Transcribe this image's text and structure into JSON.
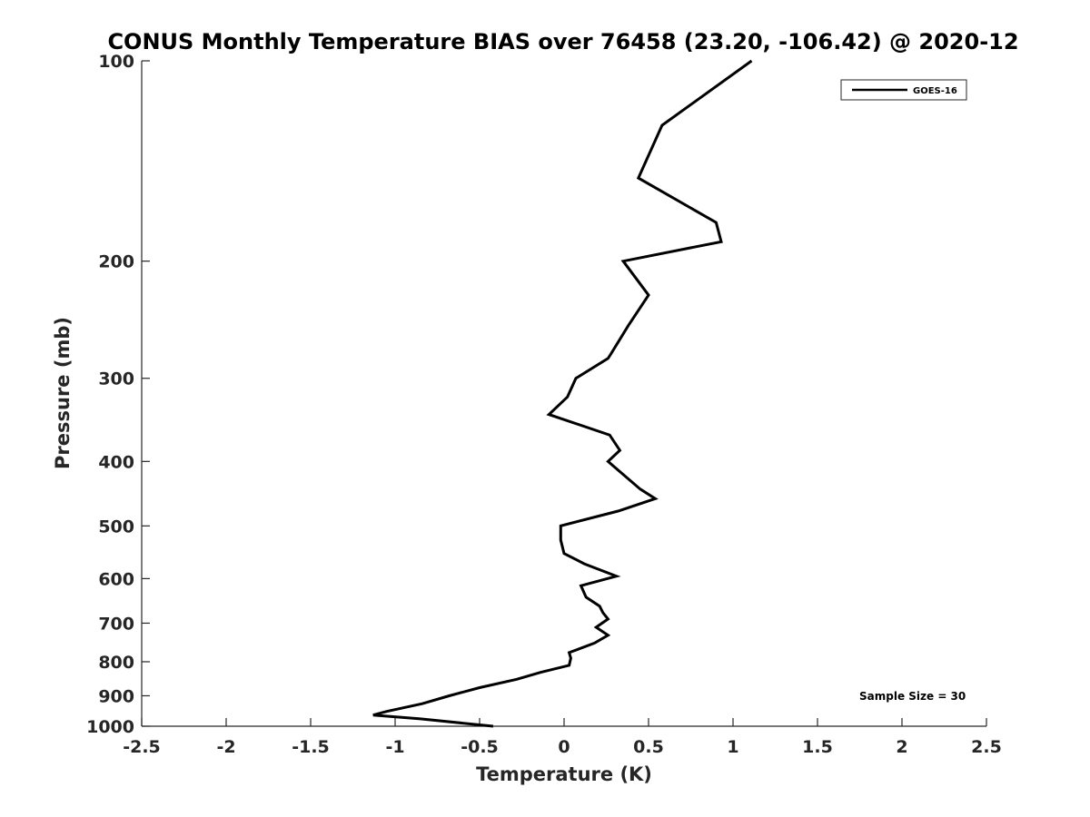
{
  "chart_data": {
    "type": "line",
    "title": "CONUS Monthly Temperature BIAS over 76458 (23.20, -106.42) @ 2020-12",
    "xlabel": "Temperature (K)",
    "ylabel": "Pressure (mb)",
    "xlim": [
      -2.5,
      2.5
    ],
    "ylim": [
      100,
      1000
    ],
    "y_scale": "log",
    "y_reversed": true,
    "grid": false,
    "legend_position": "top-right",
    "x_ticks": [
      "-2.5",
      "-2",
      "-1.5",
      "-1",
      "-0.5",
      "0",
      "0.5",
      "1",
      "1.5",
      "2",
      "2.5"
    ],
    "y_ticks": [
      "100",
      "200",
      "300",
      "400",
      "500",
      "600",
      "700",
      "800",
      "900",
      "1000"
    ],
    "series": [
      {
        "name": "GOES-16",
        "color": "#000000",
        "points": [
          {
            "t": 1.11,
            "p": 100
          },
          {
            "t": 0.58,
            "p": 125
          },
          {
            "t": 0.44,
            "p": 150
          },
          {
            "t": 0.9,
            "p": 175
          },
          {
            "t": 0.93,
            "p": 187
          },
          {
            "t": 0.35,
            "p": 200
          },
          {
            "t": 0.5,
            "p": 225
          },
          {
            "t": 0.38,
            "p": 250
          },
          {
            "t": 0.28,
            "p": 275
          },
          {
            "t": 0.26,
            "p": 280
          },
          {
            "t": 0.07,
            "p": 300
          },
          {
            "t": 0.02,
            "p": 320
          },
          {
            "t": -0.09,
            "p": 340
          },
          {
            "t": 0.27,
            "p": 365
          },
          {
            "t": 0.33,
            "p": 385
          },
          {
            "t": 0.26,
            "p": 400
          },
          {
            "t": 0.45,
            "p": 440
          },
          {
            "t": 0.54,
            "p": 455
          },
          {
            "t": 0.32,
            "p": 475
          },
          {
            "t": -0.02,
            "p": 500
          },
          {
            "t": -0.02,
            "p": 525
          },
          {
            "t": 0.0,
            "p": 550
          },
          {
            "t": 0.12,
            "p": 570
          },
          {
            "t": 0.31,
            "p": 595
          },
          {
            "t": 0.1,
            "p": 615
          },
          {
            "t": 0.13,
            "p": 640
          },
          {
            "t": 0.21,
            "p": 660
          },
          {
            "t": 0.23,
            "p": 675
          },
          {
            "t": 0.26,
            "p": 690
          },
          {
            "t": 0.19,
            "p": 710
          },
          {
            "t": 0.26,
            "p": 730
          },
          {
            "t": 0.18,
            "p": 750
          },
          {
            "t": 0.03,
            "p": 775
          },
          {
            "t": 0.04,
            "p": 790
          },
          {
            "t": 0.03,
            "p": 810
          },
          {
            "t": -0.14,
            "p": 830
          },
          {
            "t": -0.28,
            "p": 850
          },
          {
            "t": -0.5,
            "p": 875
          },
          {
            "t": -0.68,
            "p": 900
          },
          {
            "t": -0.84,
            "p": 925
          },
          {
            "t": -1.05,
            "p": 950
          },
          {
            "t": -1.13,
            "p": 962
          },
          {
            "t": -0.85,
            "p": 975
          },
          {
            "t": -0.42,
            "p": 1000
          }
        ]
      }
    ],
    "annotation": "Sample Size = 30"
  }
}
